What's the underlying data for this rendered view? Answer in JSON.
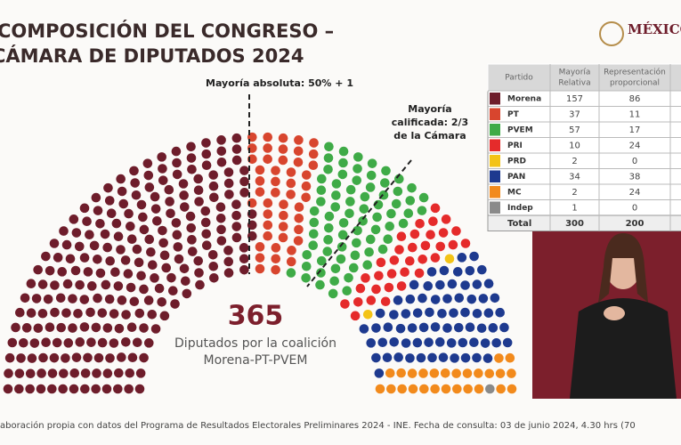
{
  "header": {
    "title_lines": [
      "COMPOSICIÓN DEL CONGRESO –",
      "CÁMARA DE DIPUTADOS 2024"
    ],
    "logo": "MÉXICO"
  },
  "chart_data": {
    "type": "parliament",
    "annotations": {
      "absolute": "Mayoría absoluta: 50% + 1",
      "qualified": [
        "Mayoría",
        "calificada: 2/3",
        "de la Cámara"
      ]
    },
    "highlight": {
      "number": "365",
      "caption": [
        "Diputados por la coalición",
        "Morena-PT-PVEM"
      ]
    }
  },
  "table": {
    "columns": [
      [
        "Partido"
      ],
      [
        "Mayoría",
        "Relativa"
      ],
      [
        "Representación",
        "proporcional"
      ]
    ],
    "rows": [
      [
        "Morena",
        157,
        86
      ],
      [
        "PT",
        37,
        11
      ],
      [
        "PVEM",
        57,
        17
      ],
      [
        "PRI",
        10,
        24
      ],
      [
        "PRD",
        2,
        0
      ],
      [
        "PAN",
        34,
        38
      ],
      [
        "MC",
        2,
        24
      ],
      [
        "Indep",
        1,
        0
      ]
    ],
    "colors": [
      "#6e1d2b",
      "#d8452e",
      "#3fab47",
      "#e52b2b",
      "#f3c316",
      "#1e3a8f",
      "#f28a1c",
      "#8a8a8a"
    ],
    "total": [
      "Total",
      300,
      200
    ]
  },
  "footer": "aboración propia con datos del Programa de Resultados Electorales Preliminares 2024 - INE. Fecha de consulta: 03 de junio 2024, 4.30 hrs (70"
}
